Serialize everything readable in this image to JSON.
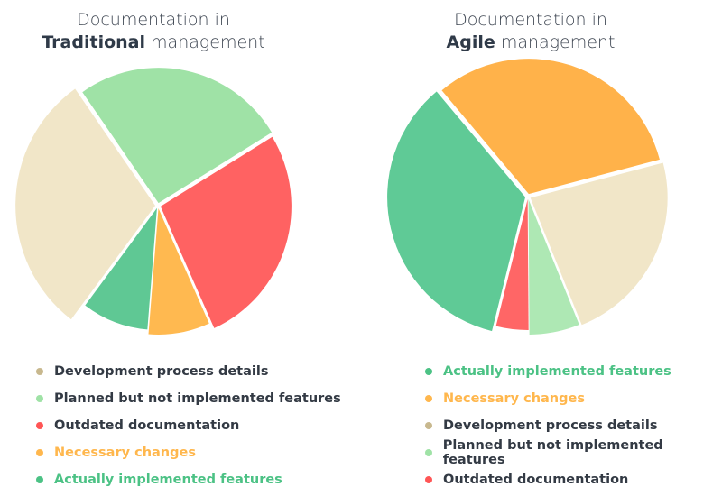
{
  "chart_data": [
    {
      "type": "pie",
      "title_line1": "Documentation in",
      "title_bold": "Traditional",
      "title_rest": "management",
      "slices": [
        {
          "label": "Planned but not implemented features",
          "value": 26,
          "color": "#9fe2a6"
        },
        {
          "label": "Outdated documentation",
          "value": 27,
          "color": "#ff6262"
        },
        {
          "label": "Necessary changes",
          "value": 8,
          "color": "#ffb950"
        },
        {
          "label": "Actually implemented features",
          "value": 9,
          "color": "#5fc894"
        },
        {
          "label": "Development process details",
          "value": 30,
          "color": "#f1e6c8"
        }
      ],
      "legend": [
        {
          "label": "Development process details",
          "dot": "#c8b88e",
          "text_color": "#333a44"
        },
        {
          "label": "Planned but not implemented features",
          "dot": "#9fe2a6",
          "text_color": "#333a44"
        },
        {
          "label": "Outdated documentation",
          "dot": "#ff5555",
          "text_color": "#333a44"
        },
        {
          "label": "Necessary changes",
          "dot": "#ffb74d",
          "text_color": "#ffb74d"
        },
        {
          "label": "Actually implemented features",
          "dot": "#4cc285",
          "text_color": "#4cc285"
        }
      ]
    },
    {
      "type": "pie",
      "title_line1": "Documentation in",
      "title_bold": "Agile",
      "title_rest": "management",
      "slices": [
        {
          "label": "Necessary changes",
          "value": 32,
          "color": "#ffb24a"
        },
        {
          "label": "Development process details",
          "value": 23,
          "color": "#f1e6c8"
        },
        {
          "label": "Planned but not implemented features",
          "value": 6,
          "color": "#aee8b4"
        },
        {
          "label": "Outdated documentation",
          "value": 4,
          "color": "#ff6666"
        },
        {
          "label": "Actually implemented features",
          "value": 35,
          "color": "#5fca96"
        }
      ],
      "legend": [
        {
          "label": "Actually implemented features",
          "dot": "#4cc285",
          "text_color": "#4cc285"
        },
        {
          "label": "Necessary changes",
          "dot": "#ffb74d",
          "text_color": "#ffb74d"
        },
        {
          "label": "Development process details",
          "dot": "#c8b88e",
          "text_color": "#333a44"
        },
        {
          "label": "Planned but not implemented features",
          "dot": "#9fe2a6",
          "text_color": "#333a44"
        },
        {
          "label": "Outdated documentation",
          "dot": "#ff5555",
          "text_color": "#333a44"
        }
      ]
    }
  ]
}
